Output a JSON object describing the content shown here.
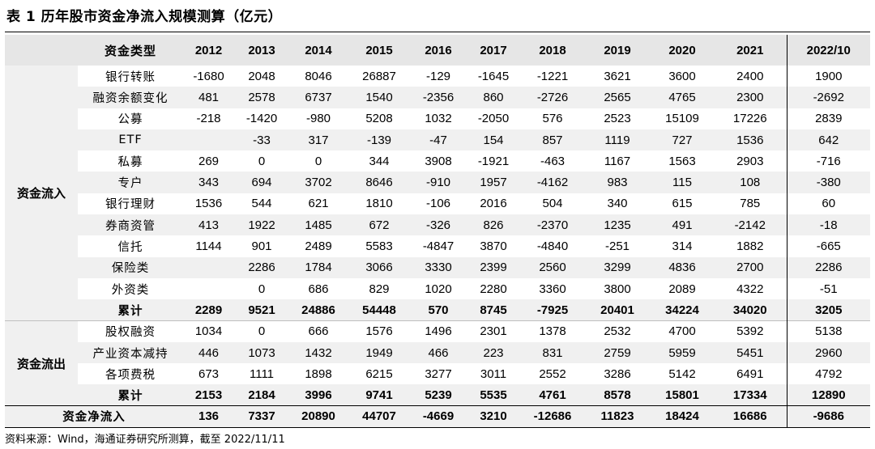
{
  "title": "表 1  历年股市资金净流入规模测算（亿元）",
  "header": {
    "category_label": "资金类型",
    "years": [
      "2012",
      "2013",
      "2014",
      "2015",
      "2016",
      "2017",
      "2018",
      "2019",
      "2020",
      "2021",
      "2022/10"
    ]
  },
  "inflow": {
    "group_label": "资金流入",
    "rows": [
      {
        "label": "银行转账",
        "values": [
          "-1680",
          "2048",
          "8046",
          "26887",
          "-129",
          "-1645",
          "-1221",
          "3621",
          "3600",
          "2400",
          "1900"
        ]
      },
      {
        "label": "融资余额变化",
        "values": [
          "481",
          "2578",
          "6737",
          "1540",
          "-2356",
          "860",
          "-2726",
          "2565",
          "4765",
          "2300",
          "-2692"
        ]
      },
      {
        "label": "公募",
        "values": [
          "-218",
          "-1420",
          "-980",
          "5208",
          "1032",
          "-2050",
          "576",
          "2523",
          "15109",
          "17226",
          "2839"
        ]
      },
      {
        "label": "ETF",
        "values": [
          "",
          "-33",
          "317",
          "-139",
          "-47",
          "154",
          "857",
          "1119",
          "727",
          "1536",
          "642"
        ]
      },
      {
        "label": "私募",
        "values": [
          "269",
          "0",
          "0",
          "344",
          "3908",
          "-1921",
          "-463",
          "1167",
          "1563",
          "2903",
          "-716"
        ]
      },
      {
        "label": "专户",
        "values": [
          "343",
          "694",
          "3702",
          "8646",
          "-910",
          "1957",
          "-4162",
          "983",
          "115",
          "108",
          "-380"
        ]
      },
      {
        "label": "银行理财",
        "values": [
          "1536",
          "544",
          "621",
          "1810",
          "-106",
          "2016",
          "504",
          "340",
          "615",
          "785",
          "60"
        ]
      },
      {
        "label": "券商资管",
        "values": [
          "413",
          "1922",
          "1485",
          "672",
          "-326",
          "826",
          "-2370",
          "1235",
          "491",
          "-2142",
          "-18"
        ]
      },
      {
        "label": "信托",
        "values": [
          "1144",
          "901",
          "2489",
          "5583",
          "-4847",
          "3870",
          "-4840",
          "-251",
          "314",
          "1882",
          "-665"
        ]
      },
      {
        "label": "保险类",
        "values": [
          "",
          "2286",
          "1784",
          "3066",
          "3330",
          "2399",
          "2560",
          "3299",
          "4836",
          "2700",
          "2286"
        ]
      },
      {
        "label": "外资类",
        "values": [
          "",
          "0",
          "686",
          "829",
          "1020",
          "2280",
          "3360",
          "3800",
          "2089",
          "4322",
          "-51"
        ]
      },
      {
        "label": "累计",
        "values": [
          "2289",
          "9521",
          "24886",
          "54448",
          "570",
          "8745",
          "-7925",
          "20401",
          "34224",
          "34020",
          "3205"
        ]
      }
    ]
  },
  "outflow": {
    "group_label": "资金流出",
    "rows": [
      {
        "label": "股权融资",
        "values": [
          "1034",
          "0",
          "666",
          "1576",
          "1496",
          "2301",
          "1378",
          "2532",
          "4700",
          "5392",
          "5138"
        ]
      },
      {
        "label": "产业资本减持",
        "values": [
          "446",
          "1073",
          "1432",
          "1949",
          "466",
          "223",
          "831",
          "2759",
          "5959",
          "5451",
          "2960"
        ]
      },
      {
        "label": "各项费税",
        "values": [
          "673",
          "1111",
          "1898",
          "6215",
          "3277",
          "3011",
          "2552",
          "3286",
          "5142",
          "6491",
          "4792"
        ]
      },
      {
        "label": "累计",
        "values": [
          "2153",
          "2184",
          "3996",
          "9741",
          "5239",
          "5535",
          "4761",
          "8578",
          "15801",
          "17334",
          "12890"
        ]
      }
    ]
  },
  "net": {
    "label": "资金净流入",
    "values": [
      "136",
      "7337",
      "20890",
      "44707",
      "-4669",
      "3210",
      "-12686",
      "11823",
      "18424",
      "16686",
      "-9686"
    ]
  },
  "source": "资料来源：Wind，海通证券研究所测算，截至 2022/11/11"
}
